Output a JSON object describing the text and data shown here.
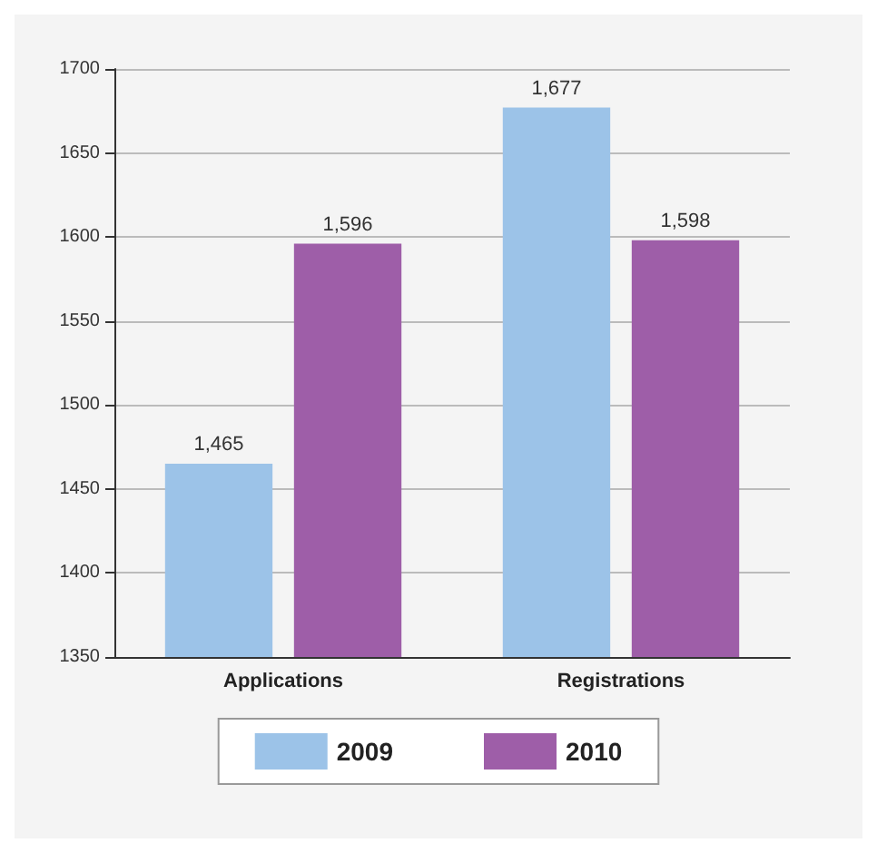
{
  "chart_data": {
    "type": "bar",
    "categories": [
      "Applications",
      "Registrations"
    ],
    "series": [
      {
        "name": "2009",
        "color": "#9cc3e8",
        "values": [
          1465,
          1677
        ],
        "value_labels": [
          "1,465",
          "1,677"
        ]
      },
      {
        "name": "2010",
        "color": "#9e5ea8",
        "values": [
          1596,
          1598
        ],
        "value_labels": [
          "1,596",
          "1,598"
        ]
      }
    ],
    "ylim": [
      1350,
      1700
    ],
    "yticks": [
      1350,
      1400,
      1450,
      1500,
      1550,
      1600,
      1650,
      1700
    ],
    "grid": "y",
    "legend": "bottom"
  }
}
